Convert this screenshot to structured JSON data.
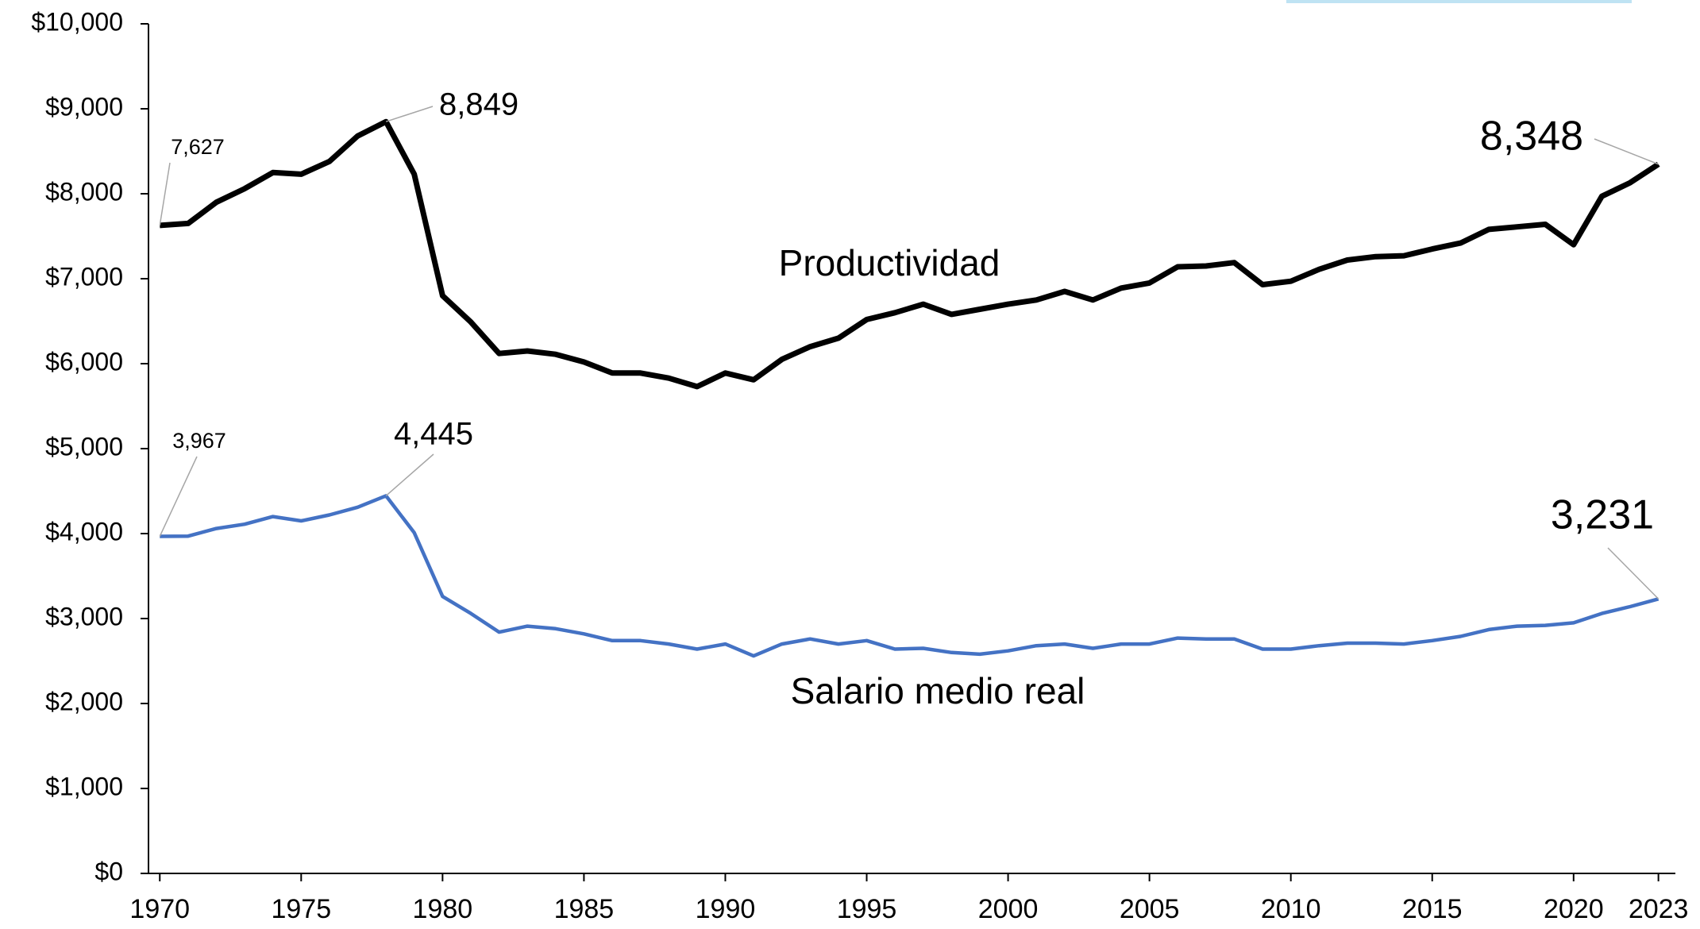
{
  "chart_data": {
    "type": "line",
    "x": [
      1970,
      1971,
      1972,
      1973,
      1974,
      1975,
      1976,
      1977,
      1978,
      1979,
      1980,
      1981,
      1982,
      1983,
      1984,
      1985,
      1986,
      1987,
      1988,
      1989,
      1990,
      1991,
      1992,
      1993,
      1994,
      1995,
      1996,
      1997,
      1998,
      1999,
      2000,
      2001,
      2002,
      2003,
      2004,
      2005,
      2006,
      2007,
      2008,
      2009,
      2010,
      2011,
      2012,
      2013,
      2014,
      2015,
      2016,
      2017,
      2018,
      2019,
      2020,
      2021,
      2022,
      2023
    ],
    "series": [
      {
        "name": "Productividad",
        "color": "#000000",
        "values": [
          7627,
          7650,
          7900,
          8060,
          8250,
          8230,
          8380,
          8680,
          8849,
          8230,
          6800,
          6490,
          6120,
          6150,
          6110,
          6020,
          5890,
          5890,
          5830,
          5730,
          5890,
          5810,
          6050,
          6200,
          6300,
          6520,
          6600,
          6700,
          6580,
          6640,
          6700,
          6750,
          6850,
          6750,
          6890,
          6950,
          7140,
          7150,
          7190,
          6930,
          6970,
          7110,
          7220,
          7260,
          7270,
          7350,
          7420,
          7580,
          7610,
          7640,
          7400,
          7970,
          8130,
          8348
        ],
        "value_labels": [
          "7,627",
          null,
          null,
          null,
          null,
          null,
          null,
          null,
          "8,849",
          null,
          null,
          null,
          null,
          null,
          null,
          null,
          null,
          null,
          null,
          null,
          null,
          null,
          null,
          null,
          null,
          null,
          null,
          null,
          null,
          null,
          null,
          null,
          null,
          null,
          null,
          null,
          null,
          null,
          null,
          null,
          null,
          null,
          null,
          null,
          null,
          null,
          null,
          null,
          null,
          null,
          null,
          null,
          null,
          "8,348"
        ]
      },
      {
        "name": "Salario medio real",
        "color": "#4472c4",
        "values": [
          3967,
          3970,
          4060,
          4110,
          4200,
          4150,
          4220,
          4310,
          4445,
          4010,
          3260,
          3060,
          2840,
          2910,
          2880,
          2820,
          2740,
          2740,
          2700,
          2640,
          2700,
          2560,
          2700,
          2760,
          2700,
          2740,
          2640,
          2650,
          2600,
          2580,
          2620,
          2680,
          2700,
          2650,
          2700,
          2700,
          2770,
          2760,
          2760,
          2640,
          2640,
          2680,
          2710,
          2710,
          2700,
          2740,
          2790,
          2870,
          2910,
          2920,
          2950,
          3060,
          3140,
          3231
        ],
        "value_labels": [
          "3,967",
          null,
          null,
          null,
          null,
          null,
          null,
          null,
          "4,445",
          null,
          null,
          null,
          null,
          null,
          null,
          null,
          null,
          null,
          null,
          null,
          null,
          null,
          null,
          null,
          null,
          null,
          null,
          null,
          null,
          null,
          null,
          null,
          null,
          null,
          null,
          null,
          null,
          null,
          null,
          null,
          null,
          null,
          null,
          null,
          null,
          null,
          null,
          null,
          null,
          null,
          null,
          null,
          null,
          "3,231"
        ]
      }
    ],
    "xlim": [
      1969.6,
      2023.6
    ],
    "xticks": [
      1970,
      1975,
      1980,
      1985,
      1990,
      1995,
      2000,
      2005,
      2010,
      2015,
      2020,
      2023
    ],
    "ylim": [
      0,
      10000
    ],
    "yticks": [
      {
        "value": 0,
        "label": "$0"
      },
      {
        "value": 1000,
        "label": "$1,000"
      },
      {
        "value": 2000,
        "label": "$2,000"
      },
      {
        "value": 3000,
        "label": "$3,000"
      },
      {
        "value": 4000,
        "label": "$4,000"
      },
      {
        "value": 5000,
        "label": "$5,000"
      },
      {
        "value": 6000,
        "label": "$6,000"
      },
      {
        "value": 7000,
        "label": "$7,000"
      },
      {
        "value": 8000,
        "label": "$8,000"
      },
      {
        "value": 9000,
        "label": "$9,000"
      },
      {
        "value": 10000,
        "label": "$10,000"
      }
    ],
    "grid": false
  }
}
